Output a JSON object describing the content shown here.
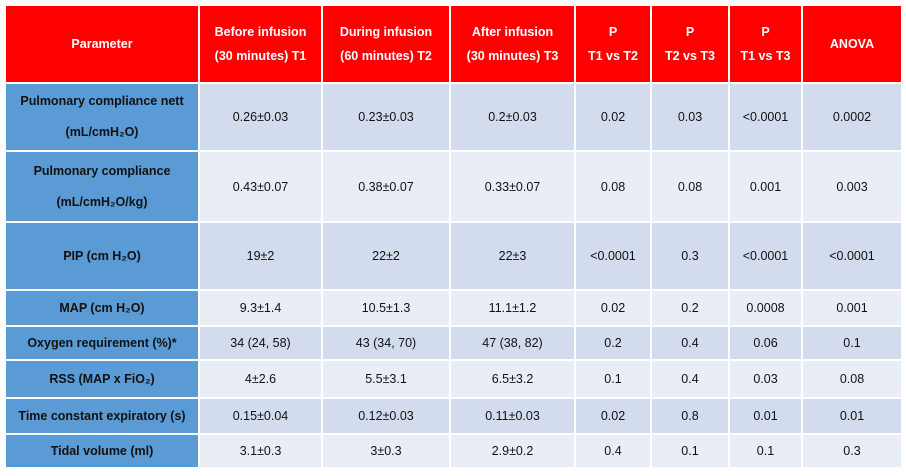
{
  "table": {
    "headers": [
      {
        "line1": "Parameter",
        "line2": ""
      },
      {
        "line1": "Before infusion",
        "line2": "(30 minutes) T1"
      },
      {
        "line1": "During infusion",
        "line2": "(60 minutes) T2"
      },
      {
        "line1": "After infusion",
        "line2": "(30 minutes) T3"
      },
      {
        "line1": "P",
        "line2": "T1 vs T2"
      },
      {
        "line1": "P",
        "line2": "T2 vs T3"
      },
      {
        "line1": "P",
        "line2": "T1 vs T3"
      },
      {
        "line1": "ANOVA",
        "line2": ""
      }
    ],
    "rows": [
      {
        "param_line1": "Pulmonary compliance nett",
        "param_line2": "(mL/cmH₂O)",
        "values": [
          "0.26±0.03",
          "0.23±0.03",
          "0.2±0.03",
          "0.02",
          "0.03",
          "<0.0001",
          "0.0002"
        ]
      },
      {
        "param_line1": "Pulmonary compliance",
        "param_line2": "(mL/cmH₂O/kg)",
        "values": [
          "0.43±0.07",
          "0.38±0.07",
          "0.33±0.07",
          "0.08",
          "0.08",
          "0.001",
          "0.003"
        ]
      },
      {
        "param_line1": "PIP (cm H₂O)",
        "param_line2": "",
        "values": [
          "19±2",
          "22±2",
          "22±3",
          "<0.0001",
          "0.3",
          "<0.0001",
          "<0.0001"
        ]
      },
      {
        "param_line1": "MAP (cm H₂O)",
        "param_line2": "",
        "values": [
          "9.3±1.4",
          "10.5±1.3",
          "11.1±1.2",
          "0.02",
          "0.2",
          "0.0008",
          "0.001"
        ]
      },
      {
        "param_line1": "Oxygen requirement (%)*",
        "param_line2": "",
        "values": [
          "34 (24, 58)",
          "43 (34, 70)",
          "47 (38, 82)",
          "0.2",
          "0.4",
          "0.06",
          "0.1"
        ]
      },
      {
        "param_line1": "RSS (MAP x FiO₂)",
        "param_line2": "",
        "values": [
          "4±2.6",
          "5.5±3.1",
          "6.5±3.2",
          "0.1",
          "0.4",
          "0.03",
          "0.08"
        ]
      },
      {
        "param_line1": "Time constant expiratory (s)",
        "param_line2": "",
        "values": [
          "0.15±0.04",
          "0.12±0.03",
          "0.11±0.03",
          "0.02",
          "0.8",
          "0.01",
          "0.01"
        ]
      },
      {
        "param_line1": "Tidal volume (ml)",
        "param_line2": "",
        "values": [
          "3.1±0.3",
          "3±0.3",
          "2.9±0.2",
          "0.4",
          "0.1",
          "0.1",
          "0.3"
        ]
      }
    ]
  }
}
